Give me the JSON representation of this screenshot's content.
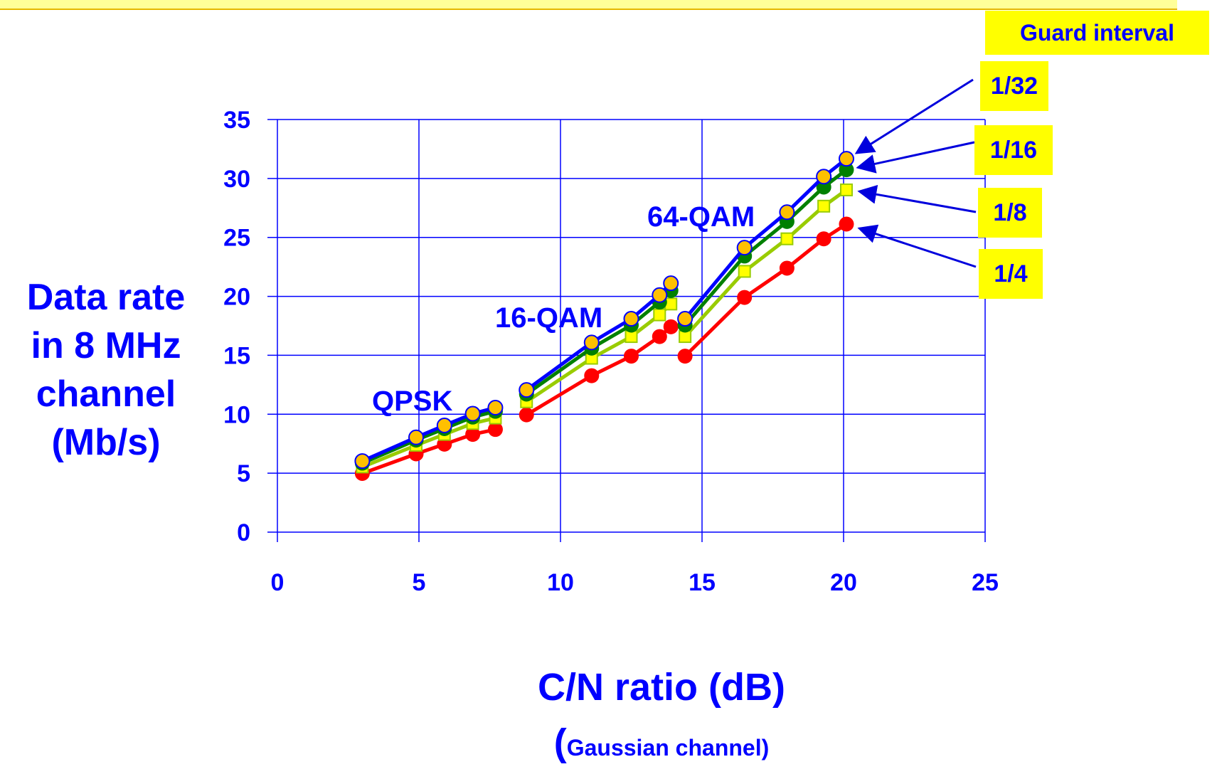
{
  "chart_data": {
    "type": "line",
    "xlabel": "C/N ratio (dB)",
    "xlabel_note_paren": "(",
    "xlabel_note": "Gaussian channel)",
    "ylabel_lines": [
      "Data rate",
      "in 8 MHz",
      "channel",
      "(Mb/s)"
    ],
    "xlim": [
      0,
      25
    ],
    "ylim": [
      0,
      35
    ],
    "xticks": [
      "0",
      "5",
      "10",
      "15",
      "20",
      "25"
    ],
    "yticks": [
      "0",
      "5",
      "10",
      "15",
      "20",
      "25",
      "30",
      "35"
    ],
    "grid": true,
    "legend_title": "Guard interval",
    "legend_placement": "right",
    "annotations": [
      {
        "text": "QPSK",
        "x": 5.4,
        "y": 10.3
      },
      {
        "text": "16-QAM",
        "x": 11.1,
        "y": 17.9
      },
      {
        "text": "64-QAM",
        "x": 15.8,
        "y": 26.4
      }
    ],
    "series": [
      {
        "name": "1/4",
        "color": "#ff0000",
        "line_color": "#ff0000",
        "marker": "circle",
        "segments": [
          [
            [
              3.0,
              4.98
            ],
            [
              4.9,
              6.64
            ],
            [
              5.9,
              7.46
            ],
            [
              6.9,
              8.29
            ],
            [
              7.7,
              8.71
            ]
          ],
          [
            [
              8.8,
              9.95
            ],
            [
              11.1,
              13.27
            ],
            [
              12.5,
              14.93
            ],
            [
              13.5,
              16.59
            ],
            [
              13.9,
              17.42
            ]
          ],
          [
            [
              14.4,
              14.93
            ],
            [
              16.5,
              19.91
            ],
            [
              18.0,
              22.39
            ],
            [
              19.3,
              24.88
            ],
            [
              20.1,
              26.13
            ]
          ]
        ]
      },
      {
        "name": "1/8",
        "color": "#ffff00",
        "line_color": "#99cc00",
        "marker": "square",
        "segments": [
          [
            [
              3.0,
              5.53
            ],
            [
              4.9,
              7.37
            ],
            [
              5.9,
              8.29
            ],
            [
              6.9,
              9.22
            ],
            [
              7.7,
              9.68
            ]
          ],
          [
            [
              8.8,
              11.06
            ],
            [
              11.1,
              14.75
            ],
            [
              12.5,
              16.59
            ],
            [
              13.5,
              18.43
            ],
            [
              13.9,
              19.35
            ]
          ],
          [
            [
              14.4,
              16.59
            ],
            [
              16.5,
              22.12
            ],
            [
              18.0,
              24.88
            ],
            [
              19.3,
              27.65
            ],
            [
              20.1,
              29.03
            ]
          ]
        ]
      },
      {
        "name": "1/16",
        "color": "#008000",
        "line_color": "#008000",
        "marker": "circle",
        "segments": [
          [
            [
              3.0,
              5.85
            ],
            [
              4.9,
              7.81
            ],
            [
              5.9,
              8.78
            ],
            [
              6.9,
              9.76
            ],
            [
              7.7,
              10.25
            ]
          ],
          [
            [
              8.8,
              11.71
            ],
            [
              11.1,
              15.61
            ],
            [
              12.5,
              17.56
            ],
            [
              13.5,
              19.52
            ],
            [
              13.9,
              20.49
            ]
          ],
          [
            [
              14.4,
              17.56
            ],
            [
              16.5,
              23.42
            ],
            [
              18.0,
              26.35
            ],
            [
              19.3,
              29.27
            ],
            [
              20.1,
              30.74
            ]
          ]
        ]
      },
      {
        "name": "1/32",
        "color": "#ffc000",
        "line_color": "#0000ff",
        "marker": "circle",
        "segments": [
          [
            [
              3.0,
              6.03
            ],
            [
              4.9,
              8.04
            ],
            [
              5.9,
              9.05
            ],
            [
              6.9,
              10.05
            ],
            [
              7.7,
              10.56
            ]
          ],
          [
            [
              8.8,
              12.06
            ],
            [
              11.1,
              16.09
            ],
            [
              12.5,
              18.1
            ],
            [
              13.5,
              20.11
            ],
            [
              13.9,
              21.11
            ]
          ],
          [
            [
              14.4,
              18.1
            ],
            [
              16.5,
              24.13
            ],
            [
              18.0,
              27.14
            ],
            [
              19.3,
              30.16
            ],
            [
              20.1,
              31.67
            ]
          ]
        ]
      }
    ]
  },
  "legend_boxes": [
    {
      "label": "1/32",
      "color": "#ffff00"
    },
    {
      "label": "1/16",
      "color": "#ffff00"
    },
    {
      "label": "1/8",
      "color": "#ffff00"
    },
    {
      "label": "1/4",
      "color": "#ffff00"
    }
  ],
  "colors": {
    "text": "#0000ff",
    "grid": "#0000ff",
    "arrow": "#0000dd",
    "legend_bg": "#ffff00"
  }
}
